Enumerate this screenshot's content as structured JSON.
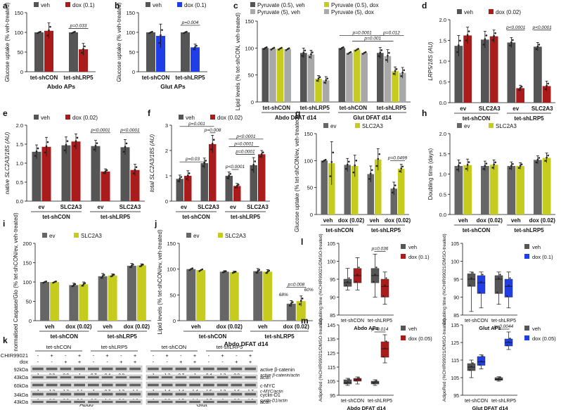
{
  "colors": {
    "veh": "#555555",
    "red": "#aa1c1c",
    "blue": "#1f3ee8",
    "gray": "#666666",
    "lgray": "#a8a8a8",
    "yellow": "#c5cc1e",
    "purple": "#6a5fb0"
  },
  "chart_data": [
    {
      "id": "a",
      "label": "a",
      "type": "bar",
      "title": "Abdo APs",
      "ylabel": "Glucose uptake (% veh-treated)",
      "ylim": [
        0,
        150
      ],
      "yticks": [
        0,
        50,
        100,
        150
      ],
      "legend": [
        "veh",
        "dox (0.1)"
      ],
      "groups": [
        "tet-shCON",
        "tet-shLRP5"
      ],
      "values": [
        [
          100,
          104
        ],
        [
          100,
          57
        ]
      ],
      "errors": [
        [
          0,
          20
        ],
        [
          0,
          15
        ]
      ],
      "annotations": [
        {
          "text": "p=0.033",
          "between": [
            1,
            1
          ]
        }
      ]
    },
    {
      "id": "b",
      "label": "b",
      "type": "bar",
      "title": "Glut APs",
      "ylabel": "Glucose uptake (% veh-treated)",
      "ylim": [
        0,
        150
      ],
      "yticks": [
        0,
        50,
        100,
        150
      ],
      "legend": [
        "veh",
        "dox (0.1)"
      ],
      "groups": [
        "tet-shCON",
        "tet-shLRP5"
      ],
      "values": [
        [
          100,
          91
        ],
        [
          100,
          62
        ]
      ],
      "errors": [
        [
          0,
          30
        ],
        [
          0,
          8
        ]
      ],
      "annotations": [
        {
          "text": "p=0.004",
          "between": [
            1,
            1
          ]
        }
      ]
    },
    {
      "id": "c",
      "label": "c",
      "type": "bar",
      "ylabel": "Lipid levels (% tet-shCON, veh-treated)",
      "ylim": [
        0,
        150
      ],
      "yticks": [
        0,
        50,
        100,
        150
      ],
      "legend": [
        "Pyruvate (0.5), veh",
        "Pyruvate (0.5), dox",
        "Pyruvate (5), veh",
        "Pyruvate (5), dox"
      ],
      "groups": [
        "tet-shCON",
        "tet-shLRP5",
        "tet-shCON",
        "tet-shLRP5"
      ],
      "supergroups": [
        "Abdo DFAT d14",
        "Glut DFAT d14"
      ],
      "values": [
        [
          100,
          99,
          99,
          98
        ],
        [
          91,
          88,
          43,
          40
        ],
        [
          100,
          91,
          97,
          91
        ],
        [
          91,
          85,
          57,
          54
        ]
      ],
      "errors": [
        [
          0,
          0,
          0,
          0
        ],
        [
          9,
          8,
          6,
          7
        ],
        [
          0,
          0,
          0,
          0
        ],
        [
          10,
          12,
          8,
          10
        ]
      ],
      "annotations": [
        "p=0.0001",
        "p=0.001",
        "p=0.012"
      ]
    },
    {
      "id": "d",
      "label": "d",
      "type": "bar",
      "ylabel": "LRP5/18S (AU)",
      "ylim": [
        0,
        2.0
      ],
      "yticks": [
        0.0,
        0.5,
        1.0,
        1.5,
        2.0
      ],
      "legend": [
        "veh",
        "dox (0.02)"
      ],
      "groups": [
        "ev",
        "SLC2A3",
        "ev",
        "SLC2A3"
      ],
      "supergroups": [
        "tet-shCON",
        "tet-shLRP5"
      ],
      "values": [
        [
          1.37,
          1.62
        ],
        [
          1.52,
          1.6
        ],
        [
          1.45,
          0.35
        ],
        [
          1.35,
          0.4
        ]
      ],
      "errors": [
        [
          0.25,
          0.2
        ],
        [
          0.2,
          0.15
        ],
        [
          0.12,
          0.07
        ],
        [
          0.1,
          0.12
        ]
      ],
      "annotations": [
        "p<0.0001",
        "p<0.0001"
      ]
    },
    {
      "id": "e",
      "label": "e",
      "type": "bar",
      "ylabel": "native SLC2A3/18S (AU)",
      "ylim": [
        0,
        2.0
      ],
      "yticks": [
        0.0,
        0.5,
        1.0,
        1.5,
        2.0
      ],
      "legend": [
        "veh",
        "dox (0.02)"
      ],
      "groups": [
        "ev",
        "SLC2A3",
        "ev",
        "SLC2A3"
      ],
      "supergroups": [
        "tet-shCON",
        "tet-shLRP5"
      ],
      "values": [
        [
          1.3,
          1.43
        ],
        [
          1.47,
          1.57
        ],
        [
          1.45,
          0.78
        ],
        [
          1.42,
          0.82
        ]
      ],
      "errors": [
        [
          0.18,
          0.25
        ],
        [
          0.22,
          0.2
        ],
        [
          0.15,
          0.07
        ],
        [
          0.2,
          0.15
        ]
      ],
      "annotations": [
        "p<0.0001",
        "p<0.0001"
      ]
    },
    {
      "id": "f",
      "label": "f",
      "type": "bar",
      "ylabel": "total SLC2A3/18S (AU)",
      "ylim": [
        0,
        3
      ],
      "yticks": [
        0,
        1,
        2,
        3
      ],
      "legend": [
        "veh",
        "dox (0.02)"
      ],
      "groups": [
        "ev",
        "SLC2A3",
        "ev",
        "SLC2A3"
      ],
      "supergroups": [
        "tet-shCON",
        "tet-shLRP5"
      ],
      "values": [
        [
          0.88,
          1.0
        ],
        [
          1.5,
          2.25
        ],
        [
          1.0,
          0.6
        ],
        [
          1.42,
          1.85
        ]
      ],
      "errors": [
        [
          0.15,
          0.2
        ],
        [
          0.2,
          0.35
        ],
        [
          0.15,
          0.1
        ],
        [
          0.3,
          0.15
        ]
      ],
      "annotations": [
        "p=0.001",
        "p=0.008",
        "p=0.03",
        "p<0.0001",
        "p=0.0001",
        "p<0.0001",
        "p=0.0001"
      ]
    },
    {
      "id": "g",
      "label": "g",
      "type": "bar",
      "ylabel": "Glucose uptake (% tet-shCON/ev, veh-treated)",
      "ylim": [
        0,
        150
      ],
      "yticks": [
        0,
        50,
        100,
        150
      ],
      "legend": [
        "ev",
        "SLC2A3"
      ],
      "groups": [
        "veh",
        "dox (0.02)",
        "veh",
        "dox (0.02)"
      ],
      "supergroups": [
        "tet-shCON",
        "tet-shLRP5"
      ],
      "values": [
        [
          100,
          95
        ],
        [
          92,
          90
        ],
        [
          75,
          102
        ],
        [
          48,
          85
        ]
      ],
      "errors": [
        [
          0,
          40
        ],
        [
          12,
          20
        ],
        [
          15,
          20
        ],
        [
          12,
          8
        ]
      ],
      "annotations": [
        "p=0.0499"
      ]
    },
    {
      "id": "h",
      "label": "h",
      "type": "bar",
      "ylabel": "Doubling time (days)",
      "ylim": [
        0,
        2.0
      ],
      "yticks": [
        0.0,
        0.5,
        1.0,
        1.5,
        2.0
      ],
      "legend": [
        "ev",
        "SLC2A3"
      ],
      "groups": [
        "veh",
        "dox (0.02)",
        "veh",
        "dox (0.02)"
      ],
      "supergroups": [
        "tet-shCON",
        "tet-shLRP5"
      ],
      "values": [
        [
          1.2,
          1.22
        ],
        [
          1.2,
          1.23
        ],
        [
          1.2,
          1.2
        ],
        [
          1.35,
          1.4
        ]
      ],
      "errors": [
        [
          0.15,
          0.15
        ],
        [
          0.12,
          0.12
        ],
        [
          0.1,
          0.08
        ],
        [
          0.1,
          0.12
        ]
      ]
    },
    {
      "id": "i",
      "label": "i",
      "type": "bar",
      "ylabel": "normalised Caspase/Glo (% tet-shCON/ev, veh-treated)",
      "ylim": [
        0,
        200
      ],
      "yticks": [
        0,
        50,
        100,
        150,
        200
      ],
      "legend": [
        "ev",
        "SLC2A3"
      ],
      "groups": [
        "veh",
        "dox (0.02)",
        "veh",
        "dox (0.02)"
      ],
      "supergroups": [
        "tet-shCON",
        "tet-shLRP5"
      ],
      "values": [
        [
          100,
          100
        ],
        [
          92,
          94
        ],
        [
          115,
          117
        ],
        [
          142,
          143
        ]
      ],
      "errors": [
        [
          0,
          0
        ],
        [
          5,
          6
        ],
        [
          7,
          4
        ],
        [
          6,
          4
        ]
      ]
    },
    {
      "id": "j",
      "label": "j",
      "type": "bar",
      "title": "Abdo DFAT d14",
      "ylabel": "Lipid levels (% tet-shCON/ev, veh-treated)",
      "ylim": [
        0,
        150
      ],
      "yticks": [
        0,
        50,
        100,
        150
      ],
      "legend": [
        "ev",
        "SLC2A3"
      ],
      "groups": [
        "veh",
        "dox (0.02)",
        "veh",
        "dox (0.02)"
      ],
      "supergroups": [
        "tet-shCON",
        "tet-shLRP5"
      ],
      "values": [
        [
          100,
          98
        ],
        [
          95,
          94
        ],
        [
          96,
          95
        ],
        [
          33,
          38
        ]
      ],
      "errors": [
        [
          0,
          0
        ],
        [
          2,
          2
        ],
        [
          5,
          4
        ],
        [
          6,
          10
        ]
      ],
      "annotations": [
        "p=0.008",
        "68%",
        "60%"
      ]
    },
    {
      "id": "l1",
      "label": "l",
      "type": "boxplot",
      "title": "Abdo APs",
      "ylabel": "Doubling time (%CHIR99021/DMSO-treated)",
      "ylim": [
        85,
        105
      ],
      "yticks": [
        85,
        90,
        95,
        100,
        105
      ],
      "legend": [
        "veh",
        "dox (0.1)"
      ],
      "groups": [
        "tet-shCON",
        "tet-shLRP5"
      ],
      "boxes": [
        [
          [
            92,
            93,
            94,
            95,
            98
          ],
          [
            92,
            94,
            96,
            98,
            101
          ]
        ],
        [
          [
            90,
            94,
            96,
            98,
            102
          ],
          [
            88,
            90,
            93,
            95,
            97
          ]
        ]
      ],
      "annotations": [
        "p=0.036"
      ]
    },
    {
      "id": "l2",
      "type": "boxplot",
      "title": "Glut APs",
      "ylabel": "Doubling time (%CHIR99021/DMSO-treated)",
      "ylim": [
        85,
        105
      ],
      "yticks": [
        85,
        90,
        95,
        100,
        105
      ],
      "legend": [
        "veh",
        "dox (0.1)"
      ],
      "groups": [
        "tet-shCON",
        "tet-shLRP5"
      ],
      "boxes": [
        [
          [
            86,
            93,
            95,
            96.5,
            97
          ],
          [
            87,
            91,
            94,
            96,
            97
          ]
        ],
        [
          [
            88,
            91,
            95,
            96,
            97
          ],
          [
            87,
            90,
            93,
            95,
            97
          ]
        ]
      ]
    },
    {
      "id": "m1",
      "label": "m",
      "type": "boxplot",
      "title": "Abdo DFAT d14",
      "ylabel": "AdipoRed (%CHIR99021/DMSO-treated)",
      "ylim": [
        95,
        145
      ],
      "yticks": [
        95,
        105,
        115,
        125,
        135,
        145
      ],
      "legend": [
        "veh",
        "dox (0.05)"
      ],
      "groups": [
        "tet-shCON",
        "tet-shLRP5"
      ],
      "boxes": [
        [
          [
            102,
            103,
            104,
            106,
            107
          ],
          [
            103,
            105,
            106,
            107,
            108
          ]
        ],
        [
          [
            102,
            103,
            104,
            105,
            106
          ],
          [
            118,
            122,
            128,
            133,
            138
          ]
        ]
      ],
      "annotations": [
        "p=0.014"
      ]
    },
    {
      "id": "m2",
      "type": "boxplot",
      "title": "Glut DFAT d14",
      "ylabel": "AdipoRed (%CHIR99021/DMSO-treated)",
      "ylim": [
        95,
        135
      ],
      "yticks": [
        95,
        105,
        115,
        125,
        135
      ],
      "legend": [
        "veh",
        "dox (0.05)"
      ],
      "groups": [
        "tet-shCON",
        "tet-shLRP5"
      ],
      "boxes": [
        [
          [
            105,
            109,
            111,
            113,
            115
          ],
          [
            110,
            112,
            114,
            117,
            118
          ]
        ],
        [
          [
            103,
            103.5,
            104,
            105,
            105.5
          ],
          [
            121,
            123,
            125,
            127,
            131
          ]
        ]
      ],
      "annotations": [
        "p=0.0044"
      ]
    }
  ],
  "blot": {
    "label": "k",
    "left": {
      "cell_type": "Abdo",
      "groups": [
        "tet-shCON",
        "tet-shLRP5"
      ]
    },
    "right": {
      "cell_type": "Glut",
      "groups": [
        "tet-shCON",
        "tet-shLRP5"
      ]
    },
    "treatments": [
      "CHIR99021",
      "dox"
    ],
    "chir": [
      "-",
      "+",
      "-",
      "+",
      "-",
      "+",
      "-",
      "+"
    ],
    "dox": [
      "-",
      "-",
      "+",
      "+",
      "-",
      "-",
      "+",
      "+"
    ],
    "rows": [
      {
        "mw": "92kDa",
        "band": "active β-catenin",
        "ratio_label": "active β-catenin/actin",
        "left": [
          "1",
          "0.9",
          "0.9",
          "1",
          "0.7",
          "0.4",
          "0.8",
          ""
        ],
        "right": [
          "1",
          "1.2",
          "0.7",
          "1",
          "0.4",
          "1.3",
          "0.9",
          ""
        ]
      },
      {
        "mw": "43kDa",
        "band": "actin"
      },
      {
        "mw": "60kDa",
        "band": "c-MYC",
        "ratio_label": "c-MYC/actin",
        "left": [
          "1",
          "1.2",
          "1.2",
          "1.1",
          "1",
          "0.7",
          "1.3",
          "1.1"
        ],
        "right": [
          "1",
          "1.4",
          "1.4",
          "1.4",
          "1.5",
          "1.3",
          "1.6",
          "1.7"
        ]
      },
      {
        "mw": "34kDa",
        "band": "cyclin-D1",
        "ratio_label": "cyclin-D1/actin",
        "left": [
          "1",
          "0.8",
          "0.9",
          "0.8",
          "0.8",
          "1.4",
          "0.6",
          "1.9"
        ],
        "right": [
          "1",
          "0.9",
          "1.5",
          "1.4",
          "0.7",
          "1",
          "0.6",
          "1.2"
        ]
      },
      {
        "mw": "43kDa",
        "band": "actin"
      }
    ]
  }
}
